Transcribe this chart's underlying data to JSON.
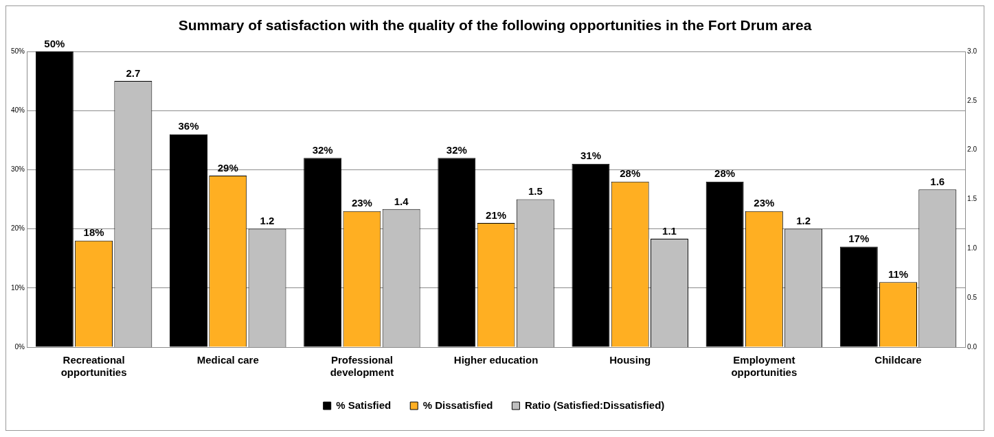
{
  "chart_data": {
    "type": "bar",
    "title": "Summary of satisfaction with the quality of the following opportunities in the Fort Drum area",
    "categories": [
      "Recreational opportunities",
      "Medical care",
      "Professional development",
      "Higher education",
      "Housing",
      "Employment opportunities",
      "Childcare"
    ],
    "series": [
      {
        "name": "% Satisfied",
        "color": "#000000",
        "values": [
          50,
          36,
          32,
          32,
          31,
          28,
          17
        ],
        "value_labels": [
          "50%",
          "36%",
          "32%",
          "32%",
          "31%",
          "28%",
          "17%"
        ]
      },
      {
        "name": "% Dissatisfied",
        "color": "#ffaf22",
        "values": [
          18,
          29,
          23,
          21,
          28,
          23,
          11
        ],
        "value_labels": [
          "18%",
          "29%",
          "23%",
          "21%",
          "28%",
          "23%",
          "11%"
        ]
      },
      {
        "name": "Ratio (Satisfied:Dissatisfied)",
        "color": "#bfbfbf",
        "axis": "y2",
        "values": [
          2.7,
          1.2,
          1.4,
          1.5,
          1.1,
          1.2,
          1.6
        ],
        "value_labels": [
          "2.7",
          "1.2",
          "1.4",
          "1.5",
          "1.1",
          "1.2",
          "1.6"
        ]
      }
    ],
    "ylim": [
      0,
      50
    ],
    "yticks": [
      {
        "value": 0,
        "label": "0%"
      },
      {
        "value": 10,
        "label": "10%"
      },
      {
        "value": 20,
        "label": "20%"
      },
      {
        "value": 30,
        "label": "30%"
      },
      {
        "value": 40,
        "label": "40%"
      },
      {
        "value": 50,
        "label": "50%"
      }
    ],
    "y2lim": [
      0,
      3
    ],
    "y2ticks": [
      {
        "value": 0,
        "label": "0.0"
      },
      {
        "value": 0.5,
        "label": "0.5"
      },
      {
        "value": 1,
        "label": "1.0"
      },
      {
        "value": 1.5,
        "label": "1.5"
      },
      {
        "value": 2,
        "label": "2.0"
      },
      {
        "value": 2.5,
        "label": "2.5"
      },
      {
        "value": 3,
        "label": "3.0"
      }
    ],
    "grid": "y",
    "legend": "bottom"
  }
}
